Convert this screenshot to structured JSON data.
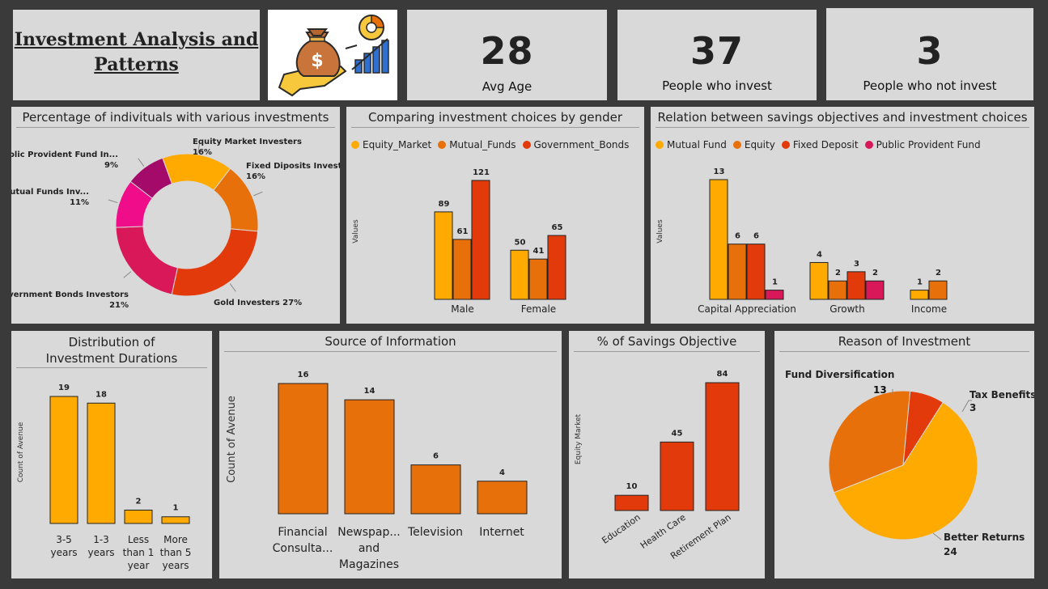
{
  "header": {
    "title": "Investment Analysis and Patterns",
    "kpis": [
      {
        "value": "28",
        "label": "Avg Age"
      },
      {
        "value": "37",
        "label": "People who invest"
      },
      {
        "value": "3",
        "label": "People who not invest"
      }
    ]
  },
  "colors": {
    "yellow": "#FFAA00",
    "orange": "#E8700A",
    "red": "#E33A0C",
    "crimson": "#D81859",
    "magenta": "#EF0D8A",
    "purple": "#A30A6A",
    "panel": "#D9D9D9",
    "background": "#3A3A3A"
  },
  "chart_data": [
    {
      "id": "donut",
      "type": "pie",
      "title": "Percentage of indivituals with various investments",
      "slices": [
        {
          "label": "Equity Market Investers",
          "value": 16,
          "pct_label": "16%",
          "color": "#FFAA00"
        },
        {
          "label": "Fixed Diposits Investers",
          "value": 16,
          "pct_label": "16%",
          "color": "#E8700A"
        },
        {
          "label": "Gold Investers",
          "value": 27,
          "pct_label": "27%",
          "color": "#E33A0C"
        },
        {
          "label": "Government Bonds Investors",
          "value": 21,
          "pct_label": "21%",
          "color": "#D81859"
        },
        {
          "label": "Mutual Funds Inv...",
          "value": 11,
          "pct_label": "11%",
          "color": "#EF0D8A"
        },
        {
          "label": "Public Provident Fund In...",
          "value": 9,
          "pct_label": "9%",
          "color": "#A30A6A"
        }
      ]
    },
    {
      "id": "gender",
      "type": "bar",
      "title": "Comparing investment choices by gender",
      "ylabel": "Values",
      "ylim": [
        0,
        121
      ],
      "categories": [
        "Male",
        "Female"
      ],
      "series": [
        {
          "name": "Equity_Market",
          "color": "#FFAA00",
          "values": [
            89,
            50
          ]
        },
        {
          "name": "Mutual_Funds",
          "color": "#E8700A",
          "values": [
            61,
            41
          ]
        },
        {
          "name": "Government_Bonds",
          "color": "#E33A0C",
          "values": [
            121,
            65
          ]
        }
      ]
    },
    {
      "id": "objectives",
      "type": "bar",
      "title": "Relation between savings objectives and investment choices",
      "ylabel": "Values",
      "ylim": [
        0,
        13
      ],
      "categories": [
        "Capital Appreciation",
        "Growth",
        "Income"
      ],
      "series": [
        {
          "name": "Mutual Fund",
          "color": "#FFAA00",
          "values": [
            13,
            4,
            1
          ]
        },
        {
          "name": "Equity",
          "color": "#E8700A",
          "values": [
            6,
            2,
            2
          ]
        },
        {
          "name": "Fixed Deposit",
          "color": "#E33A0C",
          "values": [
            6,
            3,
            null
          ]
        },
        {
          "name": "Public Provident Fund",
          "color": "#D81859",
          "values": [
            1,
            2,
            null
          ]
        }
      ]
    },
    {
      "id": "durations",
      "type": "bar",
      "title": "Distribution of Investment Durations",
      "ylabel": "Count of Avenue",
      "ylim": [
        0,
        19
      ],
      "categories": [
        "3-5 years",
        "1-3 years",
        "Less than 1 year",
        "More than 5 years"
      ],
      "values": [
        19,
        18,
        2,
        1
      ],
      "color": "#FFAA00"
    },
    {
      "id": "source",
      "type": "bar",
      "title": "Source of Information",
      "ylabel": "Count of Avenue",
      "ylim": [
        0,
        16
      ],
      "categories": [
        "Financial Consulta...",
        "Newspap... and Magazines",
        "Television",
        "Internet"
      ],
      "values": [
        16,
        14,
        6,
        4
      ],
      "color": "#E8700A"
    },
    {
      "id": "savings",
      "type": "bar",
      "title": "% of Savings Objective",
      "ylabel": "Equity Market",
      "ylim": [
        0,
        84
      ],
      "categories": [
        "Education",
        "Health Care",
        "Retirement Plan"
      ],
      "values": [
        10,
        45,
        84
      ],
      "color": "#E33A0C"
    },
    {
      "id": "reason",
      "type": "pie",
      "title": "Reason of Investment",
      "slices": [
        {
          "label": "Fund Diversification",
          "value": 13,
          "color": "#E8700A"
        },
        {
          "label": "Tax Benefits",
          "value": 3,
          "color": "#E33A0C"
        },
        {
          "label": "Better Returns",
          "value": 24,
          "color": "#FFAA00"
        }
      ]
    }
  ]
}
